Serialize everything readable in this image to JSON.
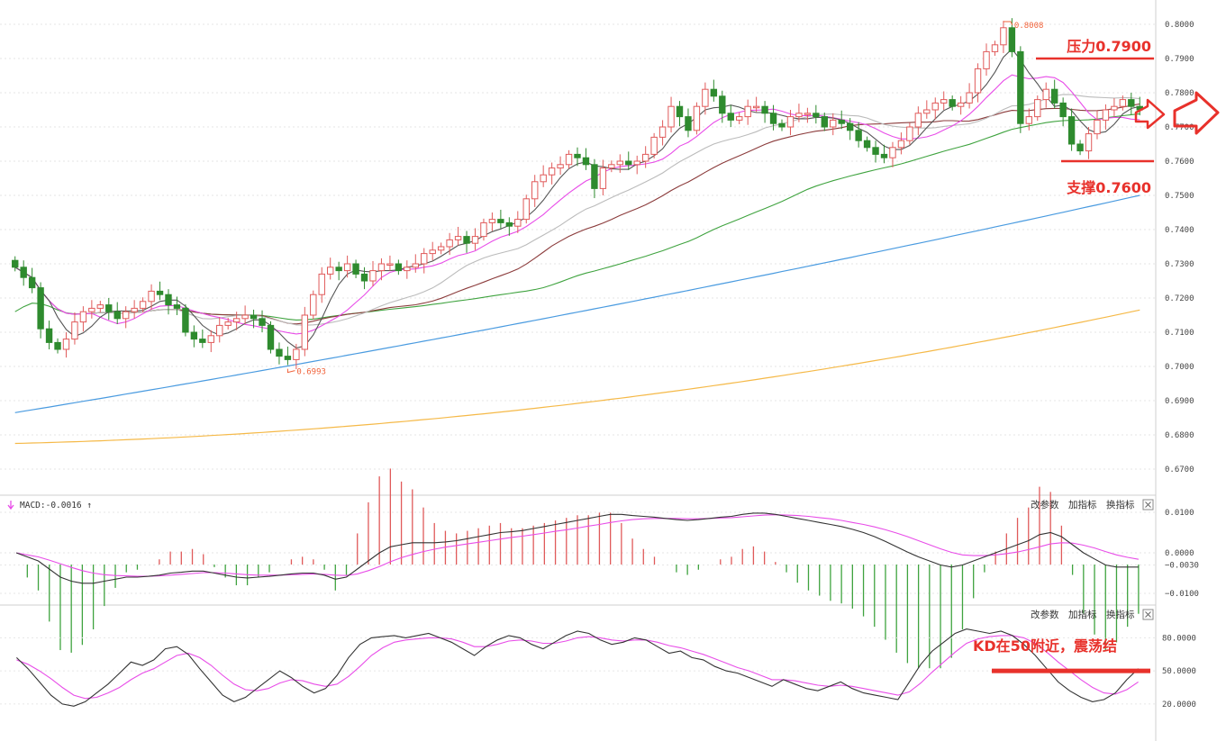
{
  "colors": {
    "up_body": "#e05a5a",
    "down_body": "#2e8b2e",
    "ma5": "#555555",
    "ma10": "#e84de8",
    "ma20": "#bbbbbb",
    "ma30": "#8b3b3b",
    "ma60": "#3fa33f",
    "ma120": "#4a9be0",
    "ma250": "#f5b948",
    "annotation": "#e8312b",
    "macd_dif": "#333333",
    "macd_dea": "#e84de8",
    "hist_up": "#e05a5a",
    "hist_down": "#3fa33f",
    "k_line": "#333333",
    "d_line": "#e84de8"
  },
  "toolbar": {
    "change_params": "改参数",
    "add_indicator": "加指标",
    "switch_indicator": "换指标",
    "close_icon": "close-icon"
  },
  "macd_label": {
    "arrow_icon": "down-arrow-icon",
    "text": "MACD:-0.0016 ↑"
  },
  "annotations": {
    "resistance": "压力0.7900",
    "support": "支撑0.7600",
    "kd_note": "KD在50附近，震荡结",
    "high_marker": "0.8008",
    "low_marker": "0.6993",
    "arrow_icon": "red-right-arrow-icon"
  },
  "chart_data": [
    {
      "type": "candlestick",
      "panel": "price",
      "ylim": [
        0.665,
        0.805
      ],
      "yticks": [
        "0.8000",
        "0.7900",
        "0.7800",
        "0.7700",
        "0.7600",
        "0.7500",
        "0.7400",
        "0.7300",
        "0.7200",
        "0.7100",
        "0.7000",
        "0.6900",
        "0.6800",
        "0.6700"
      ],
      "ytick_values": [
        0.8,
        0.79,
        0.78,
        0.77,
        0.76,
        0.75,
        0.74,
        0.73,
        0.72,
        0.71,
        0.7,
        0.69,
        0.68,
        0.67
      ],
      "high_mark": 0.8008,
      "low_mark": 0.6993,
      "resistance": 0.79,
      "support": 0.76,
      "close": [
        0.729,
        0.726,
        0.723,
        0.711,
        0.707,
        0.705,
        0.708,
        0.713,
        0.716,
        0.717,
        0.718,
        0.716,
        0.714,
        0.716,
        0.717,
        0.719,
        0.722,
        0.721,
        0.718,
        0.717,
        0.71,
        0.708,
        0.707,
        0.709,
        0.712,
        0.713,
        0.714,
        0.715,
        0.714,
        0.712,
        0.705,
        0.703,
        0.702,
        0.705,
        0.715,
        0.721,
        0.727,
        0.729,
        0.728,
        0.73,
        0.727,
        0.725,
        0.728,
        0.73,
        0.73,
        0.728,
        0.729,
        0.73,
        0.733,
        0.734,
        0.735,
        0.737,
        0.738,
        0.736,
        0.738,
        0.742,
        0.743,
        0.742,
        0.741,
        0.743,
        0.749,
        0.754,
        0.756,
        0.758,
        0.759,
        0.762,
        0.761,
        0.759,
        0.752,
        0.758,
        0.759,
        0.76,
        0.759,
        0.76,
        0.762,
        0.767,
        0.77,
        0.776,
        0.773,
        0.769,
        0.776,
        0.781,
        0.779,
        0.774,
        0.772,
        0.773,
        0.776,
        0.776,
        0.774,
        0.771,
        0.77,
        0.773,
        0.774,
        0.774,
        0.773,
        0.77,
        0.772,
        0.771,
        0.769,
        0.766,
        0.764,
        0.762,
        0.761,
        0.764,
        0.766,
        0.77,
        0.774,
        0.775,
        0.777,
        0.778,
        0.776,
        0.777,
        0.78,
        0.787,
        0.792,
        0.794,
        0.799,
        0.792,
        0.771,
        0.773,
        0.778,
        0.781,
        0.777,
        0.773,
        0.765,
        0.763,
        0.768,
        0.772,
        0.775,
        0.776,
        0.778,
        0.776,
        0.775
      ],
      "open_offset": [
        0.002,
        0.003,
        0.003,
        0.012,
        0.004,
        0.002,
        -0.003,
        -0.005,
        -0.003,
        -0.001,
        -0.001,
        0.002,
        0.002,
        -0.002,
        -0.001,
        -0.002,
        -0.003,
        0.001,
        0.003,
        0.001,
        0.007,
        0.002,
        0.001,
        -0.002,
        -0.003,
        -0.001,
        -0.001,
        -0.001,
        0.001,
        0.002,
        0.007,
        0.002,
        0.001,
        -0.003,
        -0.01,
        -0.006,
        -0.006,
        -0.002,
        0.001,
        -0.002,
        0.003,
        0.002,
        -0.003,
        -0.002,
        0.0,
        0.002,
        -0.001,
        -0.001,
        -0.003,
        -0.001,
        -0.001,
        -0.002,
        -0.001,
        0.002,
        -0.002,
        -0.004,
        -0.001,
        0.001,
        0.001,
        -0.002,
        -0.006,
        -0.005,
        -0.002,
        -0.002,
        -0.001,
        -0.003,
        0.001,
        0.002,
        0.007,
        -0.006,
        -0.001,
        -0.001,
        0.001,
        -0.001,
        -0.002,
        -0.005,
        -0.003,
        -0.006,
        0.003,
        0.004,
        -0.007,
        -0.005,
        0.002,
        0.005,
        0.002,
        -0.001,
        -0.003,
        0.0,
        0.002,
        0.003,
        0.001,
        -0.003,
        -0.001,
        0.0,
        0.001,
        0.003,
        -0.002,
        0.001,
        0.002,
        0.003,
        0.002,
        0.002,
        0.001,
        -0.003,
        -0.002,
        -0.004,
        -0.004,
        -0.001,
        -0.002,
        -0.001,
        0.002,
        -0.001,
        -0.003,
        -0.007,
        -0.005,
        -0.002,
        -0.005,
        0.007,
        0.021,
        -0.002,
        -0.005,
        -0.003,
        0.004,
        0.004,
        0.008,
        0.002,
        -0.005,
        -0.004,
        -0.003,
        -0.001,
        -0.002,
        0.002,
        0.001
      ],
      "ma120_endpoints": [
        0.6865,
        0.75
      ],
      "ma250_endpoints": [
        0.6775,
        0.7165
      ]
    },
    {
      "type": "macd",
      "panel": "macd",
      "ylim": [
        -0.012,
        0.012
      ],
      "yticks": [
        "0.0100",
        "0.0000",
        "-0.0030",
        "-0.0100"
      ],
      "ytick_values": [
        0.01,
        0.0,
        -0.003,
        -0.01
      ],
      "dif": [
        -0.0,
        -0.001,
        -0.002,
        -0.004,
        -0.006,
        -0.007,
        -0.0075,
        -0.0075,
        -0.007,
        -0.0065,
        -0.006,
        -0.006,
        -0.0058,
        -0.0055,
        -0.005,
        -0.0048,
        -0.0045,
        -0.0045,
        -0.005,
        -0.0055,
        -0.006,
        -0.0062,
        -0.006,
        -0.0058,
        -0.0055,
        -0.0052,
        -0.005,
        -0.005,
        -0.0055,
        -0.0065,
        -0.006,
        -0.004,
        -0.002,
        0.0,
        0.0015,
        0.002,
        0.0025,
        0.0025,
        0.0025,
        0.0027,
        0.003,
        0.0035,
        0.004,
        0.0045,
        0.005,
        0.0052,
        0.0055,
        0.006,
        0.0065,
        0.007,
        0.0075,
        0.008,
        0.0085,
        0.009,
        0.0095,
        0.0095,
        0.0092,
        0.009,
        0.0088,
        0.0085,
        0.0082,
        0.008,
        0.0082,
        0.0085,
        0.0088,
        0.009,
        0.0095,
        0.0098,
        0.0098,
        0.0095,
        0.009,
        0.0085,
        0.008,
        0.0075,
        0.007,
        0.0065,
        0.0058,
        0.005,
        0.004,
        0.0028,
        0.0015,
        0.0002,
        -0.001,
        -0.002,
        -0.003,
        -0.0035,
        -0.003,
        -0.002,
        -0.001,
        0.0,
        0.001,
        0.002,
        0.003,
        0.0045,
        0.005,
        0.004,
        0.002,
        0.0,
        -0.0015,
        -0.003,
        -0.0035,
        -0.0035,
        -0.0035
      ],
      "dea": [
        -0.0,
        -0.0005,
        -0.001,
        -0.0018,
        -0.0027,
        -0.0036,
        -0.0044,
        -0.005,
        -0.0054,
        -0.0056,
        -0.0057,
        -0.0058,
        -0.0058,
        -0.0057,
        -0.0055,
        -0.0053,
        -0.0051,
        -0.0049,
        -0.0049,
        -0.005,
        -0.0052,
        -0.0054,
        -0.0055,
        -0.0055,
        -0.0055,
        -0.0054,
        -0.0053,
        -0.0052,
        -0.0053,
        -0.0055,
        -0.0056,
        -0.0052,
        -0.0044,
        -0.0034,
        -0.0022,
        -0.0012,
        -0.0004,
        0.0003,
        0.0009,
        0.0014,
        0.0018,
        0.0022,
        0.0026,
        0.003,
        0.0034,
        0.0038,
        0.0041,
        0.0045,
        0.0049,
        0.0053,
        0.0057,
        0.0061,
        0.0066,
        0.007,
        0.0075,
        0.0079,
        0.0082,
        0.0084,
        0.0085,
        0.0085,
        0.0085,
        0.0084,
        0.0084,
        0.0085,
        0.0086,
        0.0087,
        0.0089,
        0.0091,
        0.0093,
        0.0094,
        0.0093,
        0.0092,
        0.009,
        0.0087,
        0.0084,
        0.008,
        0.0075,
        0.007,
        0.0064,
        0.0057,
        0.0049,
        0.004,
        0.003,
        0.002,
        0.001,
        0.0001,
        -0.0005,
        -0.0007,
        -0.0007,
        -0.0005,
        -0.0002,
        0.0002,
        0.0008,
        0.0015,
        0.0022,
        0.0025,
        0.0024,
        0.0019,
        0.0012,
        0.0003,
        -0.0005,
        -0.0011,
        -0.0016
      ]
    },
    {
      "type": "kd",
      "panel": "kd",
      "ylim": [
        15,
        95
      ],
      "yticks": [
        "80.0000",
        "50.0000",
        "20.0000"
      ],
      "ytick_values": [
        80,
        50,
        20
      ],
      "k": [
        62,
        52,
        40,
        28,
        20,
        18,
        22,
        30,
        38,
        48,
        58,
        55,
        60,
        70,
        72,
        65,
        52,
        40,
        28,
        22,
        26,
        34,
        42,
        50,
        44,
        36,
        30,
        34,
        46,
        62,
        74,
        80,
        81,
        82,
        80,
        82,
        84,
        80,
        76,
        70,
        64,
        72,
        78,
        82,
        80,
        74,
        70,
        76,
        82,
        86,
        84,
        78,
        74,
        76,
        80,
        78,
        72,
        66,
        68,
        62,
        60,
        54,
        50,
        48,
        44,
        40,
        36,
        42,
        38,
        34,
        32,
        36,
        40,
        34,
        30,
        28,
        26,
        24,
        40,
        56,
        68,
        76,
        84,
        88,
        86,
        84,
        86,
        82,
        74,
        64,
        52,
        40,
        32,
        26,
        22,
        24,
        30,
        42,
        52
      ],
      "d": [
        60,
        56,
        50,
        43,
        35,
        28,
        25,
        26,
        30,
        35,
        42,
        48,
        52,
        58,
        64,
        66,
        62,
        55,
        46,
        38,
        33,
        32,
        34,
        39,
        42,
        41,
        38,
        36,
        38,
        45,
        54,
        64,
        71,
        76,
        78,
        79,
        80,
        80,
        79,
        76,
        72,
        72,
        74,
        77,
        78,
        77,
        75,
        75,
        77,
        80,
        81,
        80,
        78,
        77,
        78,
        78,
        76,
        73,
        71,
        68,
        65,
        61,
        57,
        53,
        50,
        46,
        42,
        42,
        41,
        39,
        37,
        36,
        37,
        36,
        34,
        32,
        30,
        28,
        31,
        39,
        49,
        58,
        67,
        75,
        79,
        81,
        82,
        82,
        80,
        75,
        67,
        58,
        50,
        42,
        35,
        30,
        29,
        33,
        40
      ]
    }
  ]
}
